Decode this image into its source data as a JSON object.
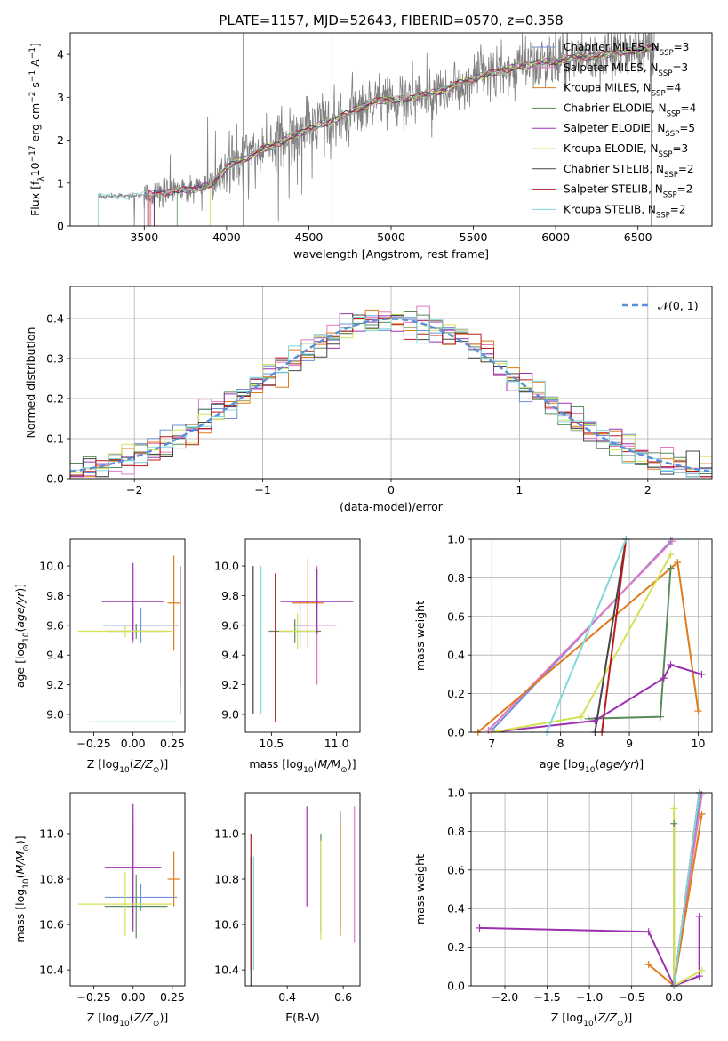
{
  "figure_title": "PLATE=1157, MJD=52643, FIBERID=0570, z=0.358",
  "colors": {
    "Chabrier MILES": "#6f8fd6",
    "Salpeter MILES": "#e377c2",
    "Kroupa MILES": "#e07b1a",
    "Chabrier ELODIE": "#5a8a5a",
    "Salpeter ELODIE": "#9b30b0",
    "Kroupa ELODIE": "#d4e157",
    "Chabrier STELIB": "#444444",
    "Salpeter STELIB": "#b71c1c",
    "Kroupa STELIB": "#80d8d8",
    "data": "#808080",
    "normal": "#5b8fd6"
  },
  "chart_data": [
    {
      "id": "spectrum",
      "type": "line",
      "title": "PLATE=1157, MJD=52643, FIBERID=0570, z=0.358",
      "xlabel": "wavelength [Angstrom, rest frame]",
      "ylabel": "Flux [f_λ 10^-17 erg cm^-2 s^-1 A^-1]",
      "xlim": [
        3050,
        6950
      ],
      "ylim": [
        0,
        4.5
      ],
      "xticks": [
        3500,
        4000,
        4500,
        5000,
        5500,
        6000,
        6500
      ],
      "yticks": [
        0,
        1,
        2,
        3,
        4
      ],
      "data_series": {
        "name": "data",
        "x": [
          3220,
          3300,
          3400,
          3500,
          3600,
          3700,
          3800,
          3900,
          4000,
          4100,
          4200,
          4300,
          4400,
          4500,
          4600,
          4700,
          4800,
          4900,
          5000,
          5100,
          5200,
          5300,
          5400,
          5500,
          5600,
          5700,
          5800,
          5900,
          6000,
          6100,
          6200,
          6300,
          6400,
          6500,
          6600
        ],
        "y": [
          0.68,
          0.7,
          0.7,
          0.72,
          0.78,
          0.82,
          0.86,
          0.95,
          1.35,
          1.55,
          1.75,
          1.9,
          2.1,
          2.25,
          2.4,
          2.55,
          2.75,
          2.9,
          2.95,
          2.95,
          3.05,
          3.15,
          3.3,
          3.45,
          3.55,
          3.65,
          3.75,
          3.8,
          3.85,
          3.9,
          3.95,
          4.0,
          4.05,
          4.1,
          4.15
        ]
      },
      "models": [
        {
          "name": "Chabrier MILES",
          "label": "Chabrier MILES, N",
          "nssp": "=3"
        },
        {
          "name": "Salpeter MILES",
          "label": "Salpeter MILES, N",
          "nssp": "=3"
        },
        {
          "name": "Kroupa MILES",
          "label": "Kroupa MILES, N",
          "nssp": "=4"
        },
        {
          "name": "Chabrier ELODIE",
          "label": "Chabrier ELODIE, N",
          "nssp": "=4"
        },
        {
          "name": "Salpeter ELODIE",
          "label": "Salpeter ELODIE, N",
          "nssp": "=5"
        },
        {
          "name": "Kroupa ELODIE",
          "label": "Kroupa ELODIE, N",
          "nssp": "=3"
        },
        {
          "name": "Chabrier STELIB",
          "label": "Chabrier STELIB, N",
          "nssp": "=2"
        },
        {
          "name": "Salpeter STELIB",
          "label": "Salpeter STELIB, N",
          "nssp": "=2"
        },
        {
          "name": "Kroupa STELIB",
          "label": "Kroupa STELIB, N",
          "nssp": "=2"
        }
      ],
      "legend_subscript": "SSP",
      "legend_position": "top-right"
    },
    {
      "id": "residuals",
      "type": "step",
      "xlabel": "(data-model)/error",
      "ylabel": "Normed distribution",
      "xlim": [
        -2.5,
        2.5
      ],
      "ylim": [
        0,
        0.48
      ],
      "xticks": [
        -2,
        -1,
        0,
        1,
        2
      ],
      "yticks": [
        0.0,
        0.1,
        0.2,
        0.3,
        0.4
      ],
      "bin_width": 0.1,
      "legend_label": "𝒩(0, 1)",
      "legend_position": "top-right",
      "grid": true
    },
    {
      "id": "age-vs-Z",
      "type": "errorbar",
      "xlabel": "Z [log10(Z/Z⊙)]",
      "ylabel": "age [log10(age/yr)]",
      "xlim": [
        -0.4,
        0.33
      ],
      "ylim": [
        8.88,
        10.18
      ],
      "xticks": [
        -0.25,
        0.0,
        0.25
      ],
      "yticks": [
        9.0,
        9.2,
        9.4,
        9.6,
        9.8,
        10.0
      ],
      "points": [
        {
          "name": "Chabrier MILES",
          "x": 0.05,
          "xerr": 0.24,
          "y": 9.6,
          "yerr": 0.12
        },
        {
          "name": "Salpeter MILES",
          "x": 0.0,
          "xerr": 0.05,
          "y": 9.6,
          "yerr": 0.12
        },
        {
          "name": "Kroupa MILES",
          "x": 0.26,
          "xerr": 0.04,
          "y": 9.75,
          "yerr": 0.32
        },
        {
          "name": "Chabrier ELODIE",
          "x": 0.02,
          "xerr": 0.19,
          "y": 9.56,
          "yerr": 0.05
        },
        {
          "name": "Salpeter ELODIE",
          "x": 0.0,
          "xerr": 0.2,
          "y": 9.76,
          "yerr": 0.26
        },
        {
          "name": "Kroupa ELODIE",
          "x": -0.05,
          "xerr": 0.3,
          "y": 9.56,
          "yerr": 0.04
        },
        {
          "name": "Chabrier STELIB",
          "x": 0.3,
          "xerr": 0.0,
          "y": 9.5,
          "yerr": 0.5
        },
        {
          "name": "Salpeter STELIB",
          "x": 0.3,
          "xerr": 0.0,
          "y": 9.6,
          "yerr": 0.4
        },
        {
          "name": "Kroupa STELIB",
          "x": 0.0,
          "xerr": 0.28,
          "y": 8.95,
          "yerr": 0.0
        }
      ]
    },
    {
      "id": "age-vs-mass",
      "type": "errorbar",
      "xlabel": "mass [log10(M/M⊙)]",
      "ylabel": "",
      "xlim": [
        10.3,
        11.18
      ],
      "ylim": [
        8.88,
        10.18
      ],
      "xticks": [
        10.5,
        11.0
      ],
      "yticks": [
        9.0,
        9.2,
        9.4,
        9.6,
        9.8,
        10.0
      ],
      "points": [
        {
          "name": "Chabrier MILES",
          "x": 10.72,
          "xerr": 0.05,
          "y": 9.6,
          "yerr": 0.15
        },
        {
          "name": "Salpeter MILES",
          "x": 10.85,
          "xerr": 0.15,
          "y": 9.6,
          "yerr": 0.4
        },
        {
          "name": "Kroupa MILES",
          "x": 10.78,
          "xerr": 0.12,
          "y": 9.75,
          "yerr": 0.3
        },
        {
          "name": "Chabrier ELODIE",
          "x": 10.68,
          "xerr": 0.2,
          "y": 9.56,
          "yerr": 0.08
        },
        {
          "name": "Salpeter ELODIE",
          "x": 10.85,
          "xerr": 0.28,
          "y": 9.76,
          "yerr": 0.22
        },
        {
          "name": "Kroupa ELODIE",
          "x": 10.7,
          "xerr": 0.14,
          "y": 9.56,
          "yerr": 0.12
        },
        {
          "name": "Chabrier STELIB",
          "x": 10.36,
          "xerr": 0.0,
          "y": 9.5,
          "yerr": 0.5
        },
        {
          "name": "Salpeter STELIB",
          "x": 10.53,
          "xerr": 0.0,
          "y": 9.45,
          "yerr": 0.5
        },
        {
          "name": "Kroupa STELIB",
          "x": 10.42,
          "xerr": 0.0,
          "y": 9.5,
          "yerr": 0.5
        }
      ]
    },
    {
      "id": "mass-weight-vs-age",
      "type": "line",
      "xlabel": "age [log10(age/yr)]",
      "ylabel": "mass weight",
      "xlim": [
        6.7,
        10.2
      ],
      "ylim": [
        0,
        1.0
      ],
      "xticks": [
        7,
        8,
        9,
        10
      ],
      "yticks": [
        0.0,
        0.2,
        0.4,
        0.6,
        0.8,
        1.0
      ],
      "grid": true,
      "series": [
        {
          "name": "Chabrier MILES",
          "x": [
            7.0,
            9.6
          ],
          "y": [
            0.01,
            0.99
          ]
        },
        {
          "name": "Salpeter MILES",
          "x": [
            6.95,
            9.62
          ],
          "y": [
            0.01,
            0.99
          ]
        },
        {
          "name": "Kroupa MILES",
          "x": [
            6.8,
            9.7,
            10.0
          ],
          "y": [
            0.0,
            0.88,
            0.11
          ]
        },
        {
          "name": "Chabrier ELODIE",
          "x": [
            8.4,
            9.45,
            9.6
          ],
          "y": [
            0.07,
            0.08,
            0.85
          ]
        },
        {
          "name": "Salpeter ELODIE",
          "x": [
            7.0,
            8.5,
            9.5,
            9.6,
            10.05
          ],
          "y": [
            0.0,
            0.06,
            0.28,
            0.35,
            0.3
          ]
        },
        {
          "name": "Kroupa ELODIE",
          "x": [
            7.0,
            8.3,
            9.6
          ],
          "y": [
            0.0,
            0.08,
            0.92
          ]
        },
        {
          "name": "Chabrier STELIB",
          "x": [
            8.5,
            8.95
          ],
          "y": [
            0.0,
            1.0
          ]
        },
        {
          "name": "Salpeter STELIB",
          "x": [
            8.6,
            8.95
          ],
          "y": [
            0.0,
            1.0
          ]
        },
        {
          "name": "Kroupa STELIB",
          "x": [
            7.8,
            8.95
          ],
          "y": [
            0.0,
            1.0
          ]
        }
      ]
    },
    {
      "id": "mass-vs-Z",
      "type": "errorbar",
      "xlabel": "Z [log10(Z/Z⊙)]",
      "ylabel": "mass [log10(M/M⊙)]",
      "xlim": [
        -0.4,
        0.33
      ],
      "ylim": [
        10.33,
        11.18
      ],
      "xticks": [
        -0.25,
        0.0,
        0.25
      ],
      "yticks": [
        10.4,
        10.6,
        10.8,
        11.0
      ],
      "points": [
        {
          "name": "Chabrier MILES",
          "x": 0.05,
          "xerr": 0.23,
          "y": 10.72,
          "yerr": 0.06
        },
        {
          "name": "Salpeter MILES",
          "x": 0.0,
          "xerr": 0.05,
          "y": 10.85,
          "yerr": 0.2
        },
        {
          "name": "Kroupa MILES",
          "x": 0.26,
          "xerr": 0.04,
          "y": 10.8,
          "yerr": 0.12
        },
        {
          "name": "Chabrier ELODIE",
          "x": 0.02,
          "xerr": 0.2,
          "y": 10.68,
          "yerr": 0.14
        },
        {
          "name": "Salpeter ELODIE",
          "x": 0.0,
          "xerr": 0.18,
          "y": 10.85,
          "yerr": 0.28
        },
        {
          "name": "Kroupa ELODIE",
          "x": -0.05,
          "xerr": 0.3,
          "y": 10.69,
          "yerr": 0.14
        },
        {
          "name": "Chabrier STELIB",
          "x": 0.3,
          "xerr": 0.0,
          "y": 10.37,
          "yerr": 0.0
        },
        {
          "name": "Salpeter STELIB",
          "x": 0.3,
          "xerr": 0.0,
          "y": 10.53,
          "yerr": 0.0
        },
        {
          "name": "Kroupa STELIB",
          "x": 0.3,
          "xerr": 0.0,
          "y": 10.42,
          "yerr": 0.0
        }
      ]
    },
    {
      "id": "mass-vs-ebv",
      "type": "errorbar",
      "xlabel": "E(B-V)",
      "ylabel": "",
      "xlim": [
        0.25,
        0.66
      ],
      "ylim": [
        10.33,
        11.18
      ],
      "xticks": [
        0.4,
        0.6
      ],
      "yticks": [
        10.4,
        10.6,
        10.8,
        11.0
      ],
      "points": [
        {
          "name": "Chabrier MILES",
          "x": 0.59,
          "xerr": 0.0,
          "y": 10.85,
          "yerr": 0.25
        },
        {
          "name": "Salpeter MILES",
          "x": 0.64,
          "xerr": 0.0,
          "y": 10.82,
          "yerr": 0.3
        },
        {
          "name": "Kroupa MILES",
          "x": 0.59,
          "xerr": 0.0,
          "y": 10.8,
          "yerr": 0.25
        },
        {
          "name": "Chabrier ELODIE",
          "x": 0.52,
          "xerr": 0.0,
          "y": 10.78,
          "yerr": 0.22
        },
        {
          "name": "Salpeter ELODIE",
          "x": 0.47,
          "xerr": 0.0,
          "y": 10.9,
          "yerr": 0.22
        },
        {
          "name": "Kroupa ELODIE",
          "x": 0.52,
          "xerr": 0.0,
          "y": 10.75,
          "yerr": 0.22
        },
        {
          "name": "Chabrier STELIB",
          "x": 0.27,
          "xerr": 0.0,
          "y": 10.6,
          "yerr": 0.3
        },
        {
          "name": "Salpeter STELIB",
          "x": 0.27,
          "xerr": 0.0,
          "y": 10.7,
          "yerr": 0.3
        },
        {
          "name": "Kroupa STELIB",
          "x": 0.28,
          "xerr": 0.0,
          "y": 10.65,
          "yerr": 0.25
        }
      ]
    },
    {
      "id": "mass-weight-vs-Z",
      "type": "line",
      "xlabel": "Z [log10(Z/Z⊙)]",
      "ylabel": "mass weight",
      "xlim": [
        -2.4,
        0.45
      ],
      "ylim": [
        0,
        1.0
      ],
      "xticks": [
        -2.0,
        -1.5,
        -1.0,
        -0.5,
        0.0
      ],
      "grid": true,
      "yticks": [
        0.0,
        0.2,
        0.4,
        0.6,
        0.8,
        1.0
      ],
      "series": [
        {
          "name": "Chabrier MILES",
          "x": [
            0.0,
            0.32
          ],
          "y": [
            0.0,
            0.99
          ]
        },
        {
          "name": "Salpeter MILES",
          "x": [
            0.0,
            0.33
          ],
          "y": [
            0.0,
            0.99
          ]
        },
        {
          "name": "Kroupa MILES",
          "x": [
            -0.3,
            0.0,
            0.33
          ],
          "y": [
            0.11,
            0.0,
            0.89
          ]
        },
        {
          "name": "Chabrier ELODIE",
          "x": [
            0.0,
            0.0
          ],
          "y": [
            0.0,
            0.84
          ]
        },
        {
          "name": "Salpeter ELODIE",
          "x": [
            -2.3,
            -0.3,
            0.0,
            0.3,
            0.3
          ],
          "y": [
            0.3,
            0.28,
            0.0,
            0.05,
            0.36
          ]
        },
        {
          "name": "Kroupa ELODIE",
          "x": [
            0.0,
            0.0,
            0.33
          ],
          "y": [
            0.92,
            0.0,
            0.08
          ]
        },
        {
          "name": "Chabrier STELIB",
          "x": [
            0.0,
            0.3
          ],
          "y": [
            0.0,
            1.0
          ]
        },
        {
          "name": "Salpeter STELIB",
          "x": [
            0.0,
            0.3
          ],
          "y": [
            0.0,
            1.0
          ]
        },
        {
          "name": "Kroupa STELIB",
          "x": [
            0.0,
            0.3
          ],
          "y": [
            0.0,
            1.0
          ]
        }
      ]
    }
  ]
}
